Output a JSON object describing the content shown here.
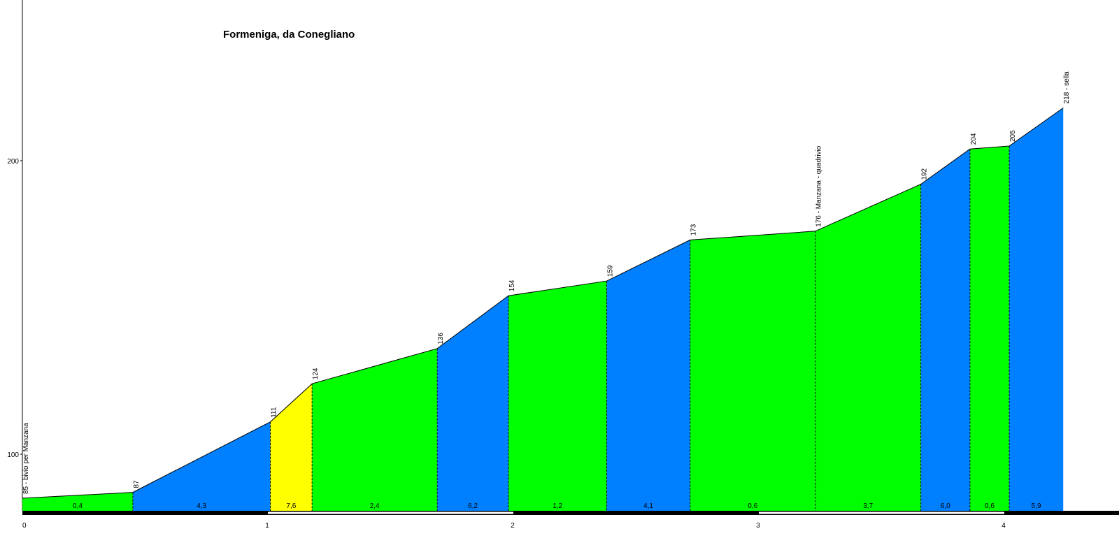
{
  "chart_data": {
    "type": "area",
    "title": "Formeniga, da Conegliano",
    "xlabel": "",
    "ylabel": "",
    "xlim": [
      0,
      4.45
    ],
    "ylim": [
      65,
      220
    ],
    "x_ticks": [
      0,
      1,
      2,
      3,
      4
    ],
    "x_tick_labels": [
      "0",
      "1",
      "2",
      "3",
      "4"
    ],
    "y_ticks": [
      100,
      200
    ],
    "y_tick_labels": [
      "100",
      "200"
    ],
    "points": [
      {
        "x": 0.0,
        "y": 85,
        "label": "85 - bivio per Manzana"
      },
      {
        "x": 0.45,
        "y": 87,
        "label": "87"
      },
      {
        "x": 1.01,
        "y": 111,
        "label": "111"
      },
      {
        "x": 1.18,
        "y": 124,
        "label": "124"
      },
      {
        "x": 1.69,
        "y": 136,
        "label": "136"
      },
      {
        "x": 1.98,
        "y": 154,
        "label": "154"
      },
      {
        "x": 2.38,
        "y": 159,
        "label": "159"
      },
      {
        "x": 2.72,
        "y": 173,
        "label": "173"
      },
      {
        "x": 3.23,
        "y": 176,
        "label": "176 - Manzana - quadrivio"
      },
      {
        "x": 3.66,
        "y": 192,
        "label": "192"
      },
      {
        "x": 3.86,
        "y": 204,
        "label": "204"
      },
      {
        "x": 4.02,
        "y": 205,
        "label": "205"
      },
      {
        "x": 4.24,
        "y": 218,
        "label": "218 - sella"
      }
    ],
    "segments": [
      {
        "gradient": "0,4",
        "color": "#00ff00"
      },
      {
        "gradient": "4,3",
        "color": "#0080ff"
      },
      {
        "gradient": "7,6",
        "color": "#ffff00"
      },
      {
        "gradient": "2,4",
        "color": "#00ff00"
      },
      {
        "gradient": "6,2",
        "color": "#0080ff"
      },
      {
        "gradient": "1,2",
        "color": "#00ff00"
      },
      {
        "gradient": "4,1",
        "color": "#0080ff"
      },
      {
        "gradient": "0,6",
        "color": "#00ff00"
      },
      {
        "gradient": "3,7",
        "color": "#00ff00"
      },
      {
        "gradient": "6,0",
        "color": "#0080ff"
      },
      {
        "gradient": "0,6",
        "color": "#00ff00"
      },
      {
        "gradient": "5,9",
        "color": "#0080ff"
      }
    ],
    "grid": false,
    "legend": "none"
  }
}
